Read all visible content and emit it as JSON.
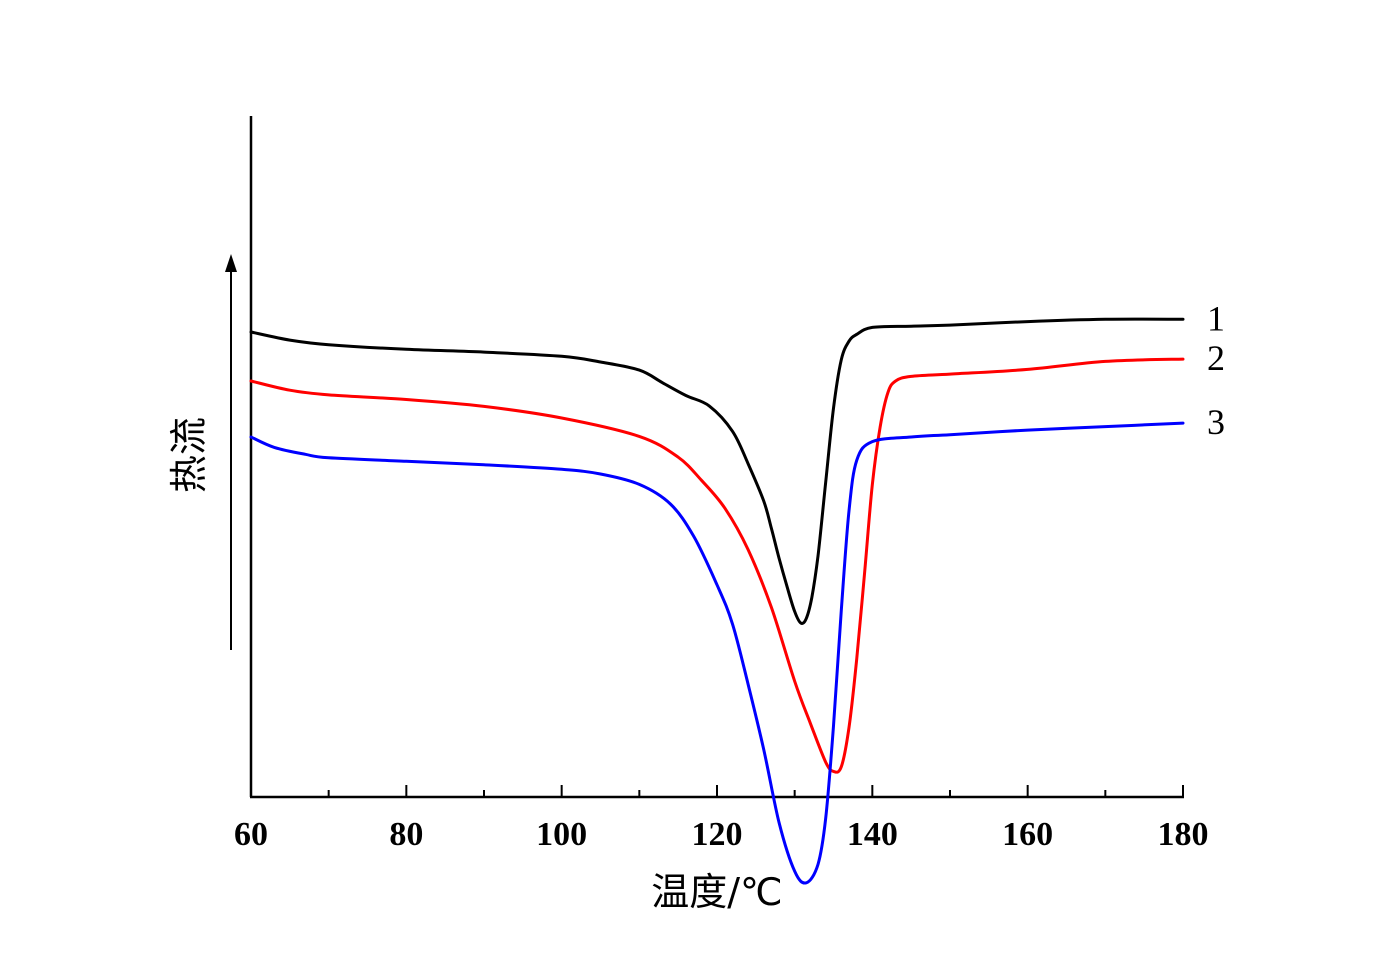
{
  "chart_data": {
    "type": "line",
    "xlabel": "温度/℃",
    "ylabel": "热流",
    "xlim": [
      60,
      180
    ],
    "x_ticks": [
      "60",
      "80",
      "100",
      "120",
      "140",
      "160",
      "180"
    ],
    "y_ticks_shown": false,
    "legend": "inline-right",
    "colors": {
      "1": "#000000",
      "2": "#ff0000",
      "3": "#0000ff",
      "axis": "#000000"
    },
    "series": [
      {
        "name": "1",
        "color": "#000000",
        "x": [
          60,
          65,
          70,
          80,
          90,
          100,
          105,
          110,
          113,
          116,
          119,
          122,
          124,
          126,
          127,
          128,
          129,
          130,
          130.8,
          131.5,
          132.2,
          133,
          134,
          135,
          136,
          137,
          138,
          140,
          145,
          150,
          160,
          170,
          180
        ],
        "y": [
          0.0,
          -0.35,
          -0.55,
          -0.75,
          -0.87,
          -1.05,
          -1.3,
          -1.65,
          -2.2,
          -2.75,
          -3.2,
          -4.3,
          -5.7,
          -7.3,
          -8.5,
          -9.8,
          -11.0,
          -12.1,
          -12.6,
          -12.4,
          -11.5,
          -9.7,
          -6.5,
          -3.3,
          -1.2,
          -0.4,
          -0.1,
          0.2,
          0.25,
          0.3,
          0.45,
          0.55,
          0.55
        ]
      },
      {
        "name": "2",
        "color": "#ff0000",
        "x": [
          60,
          65,
          70,
          80,
          90,
          100,
          110,
          115,
          118,
          121,
          124,
          127,
          130,
          132,
          134,
          135,
          136,
          137,
          138,
          139,
          140,
          141,
          142,
          143,
          145,
          150,
          160,
          170,
          180
        ],
        "y": [
          0.0,
          -0.4,
          -0.6,
          -0.8,
          -1.1,
          -1.6,
          -2.4,
          -3.3,
          -4.3,
          -5.5,
          -7.3,
          -9.8,
          -13.0,
          -14.8,
          -16.5,
          -16.9,
          -16.7,
          -15.0,
          -12.0,
          -8.3,
          -4.5,
          -2.0,
          -0.5,
          0.0,
          0.2,
          0.3,
          0.5,
          0.85,
          0.95
        ]
      },
      {
        "name": "3",
        "color": "#0000ff",
        "x": [
          60,
          63,
          67,
          70,
          80,
          90,
          100,
          105,
          110,
          114,
          117,
          120,
          122,
          124,
          126,
          128,
          130,
          131.5,
          133,
          134,
          135,
          136,
          137,
          138,
          140,
          145,
          150,
          160,
          170,
          180
        ],
        "y": [
          0.0,
          -0.45,
          -0.75,
          -0.9,
          -1.05,
          -1.2,
          -1.4,
          -1.6,
          -2.05,
          -2.9,
          -4.3,
          -6.4,
          -8.1,
          -10.7,
          -13.5,
          -16.7,
          -18.8,
          -19.3,
          -18.5,
          -16.5,
          -12.5,
          -7.5,
          -3.2,
          -1.0,
          -0.2,
          0.0,
          0.1,
          0.3,
          0.45,
          0.6
        ]
      }
    ]
  }
}
